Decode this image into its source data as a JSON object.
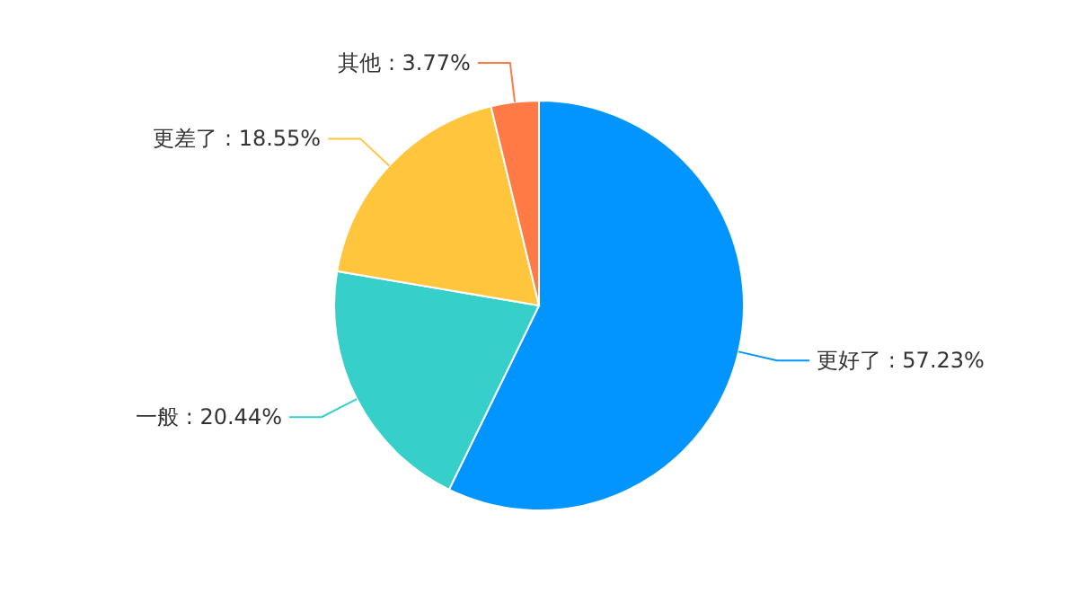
{
  "chart_data": {
    "type": "pie",
    "categories": [
      "更好了",
      "一般",
      "更差了",
      "其他"
    ],
    "values": [
      57.23,
      20.44,
      18.55,
      3.77
    ],
    "colors": [
      "#0395ff",
      "#36cfc9",
      "#ffc53d",
      "#ff7a45"
    ],
    "value_labels": [
      "57.23%",
      "20.44%",
      "18.55%",
      "3.77%"
    ]
  }
}
